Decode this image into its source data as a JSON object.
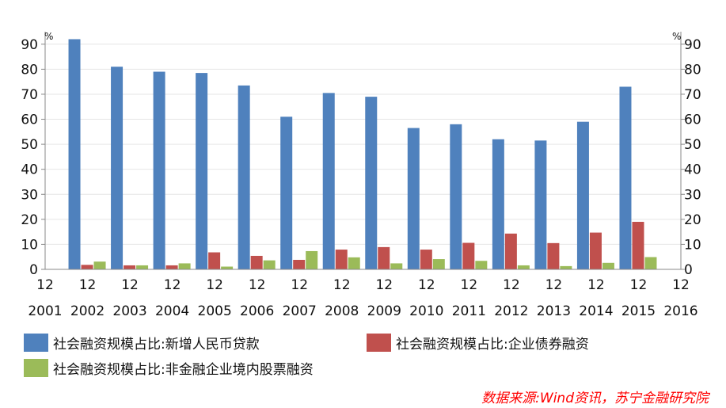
{
  "chart_data": {
    "type": "bar",
    "left_unit": "%",
    "right_unit": "%",
    "ylim": [
      0,
      95
    ],
    "yticks": [
      0,
      10,
      20,
      30,
      40,
      50,
      60,
      70,
      80,
      90
    ],
    "x_ticks": [
      {
        "month": "12",
        "year": "2001"
      },
      {
        "month": "12",
        "year": "2002"
      },
      {
        "month": "12",
        "year": "2003"
      },
      {
        "month": "12",
        "year": "2004"
      },
      {
        "month": "12",
        "year": "2005"
      },
      {
        "month": "12",
        "year": "2006"
      },
      {
        "month": "12",
        "year": "2007"
      },
      {
        "month": "12",
        "year": "2008"
      },
      {
        "month": "12",
        "year": "2009"
      },
      {
        "month": "12",
        "year": "2010"
      },
      {
        "month": "12",
        "year": "2011"
      },
      {
        "month": "12",
        "year": "2012"
      },
      {
        "month": "12",
        "year": "2013"
      },
      {
        "month": "12",
        "year": "2014"
      },
      {
        "month": "12",
        "year": "2015"
      },
      {
        "month": "12",
        "year": "2016"
      }
    ],
    "categories": [
      "2002-12",
      "2003-12",
      "2004-12",
      "2005-12",
      "2006-12",
      "2007-12",
      "2008-12",
      "2009-12",
      "2010-12",
      "2011-12",
      "2012-12",
      "2013-12",
      "2014-12",
      "2015-12"
    ],
    "series": [
      {
        "name": "社会融资规模占比:新增人民币贷款",
        "color": "#4f81bd",
        "values": [
          92,
          81,
          79,
          78.5,
          73.5,
          61,
          70.5,
          69,
          56.5,
          58,
          52,
          51.5,
          59,
          73
        ]
      },
      {
        "name": "社会融资规模占比:企业债券融资",
        "color": "#c0504d",
        "values": [
          1.8,
          1.6,
          1.6,
          6.8,
          5.4,
          3.8,
          7.9,
          8.9,
          7.9,
          10.6,
          14.3,
          10.5,
          14.7,
          19
        ]
      },
      {
        "name": "社会融资规模占比:非金融企业境内股票融资",
        "color": "#9bbb59",
        "values": [
          3.1,
          1.6,
          2.4,
          1.1,
          3.6,
          7.3,
          4.8,
          2.4,
          4.1,
          3.4,
          1.6,
          1.3,
          2.6,
          4.9
        ]
      }
    ],
    "grid": true,
    "legend_position": "bottom"
  },
  "source": {
    "text": "数据来源:Wind资讯，苏宁金融研究院",
    "color": "#ff0000"
  }
}
